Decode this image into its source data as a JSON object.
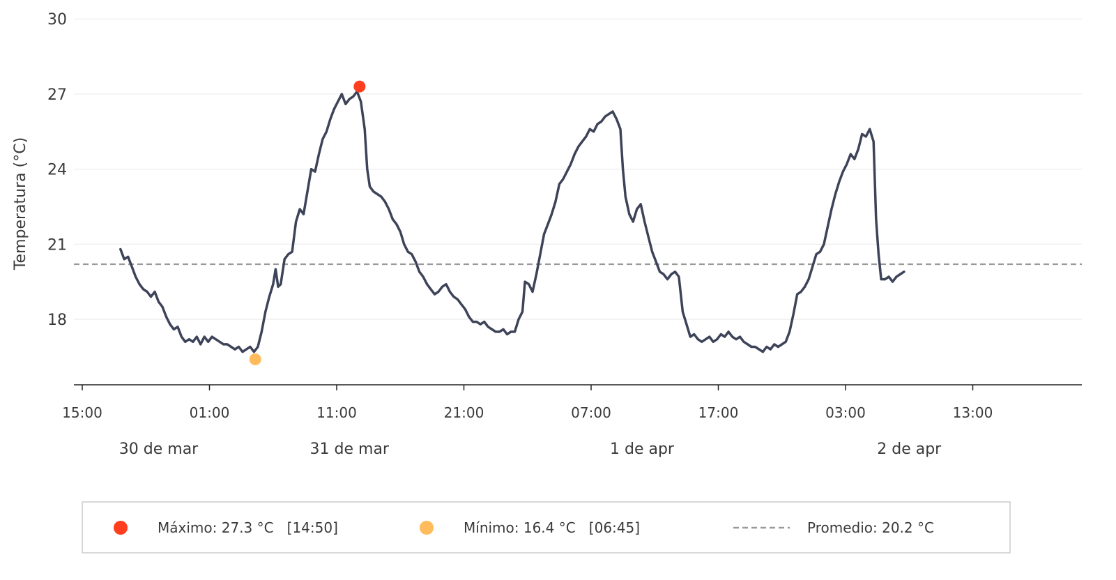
{
  "chart_data": {
    "type": "line",
    "ylabel": "Temperatura (°C)",
    "xlabel": "",
    "ylim": [
      15.2,
      30.3
    ],
    "x_range_hours": [
      15,
      63
    ],
    "yticks": [
      18,
      21,
      24,
      27,
      30
    ],
    "xticks": [
      {
        "hour": 15,
        "label": "15:00"
      },
      {
        "hour": 25,
        "label": "01:00"
      },
      {
        "hour": 35,
        "label": "11:00"
      },
      {
        "hour": 45,
        "label": "21:00"
      },
      {
        "hour": 55,
        "label": "07:00"
      },
      {
        "hour": 65,
        "label": "17:00"
      },
      {
        "hour": 75,
        "label": "03:00"
      },
      {
        "hour": 85,
        "label": "13:00"
      }
    ],
    "date_labels": [
      {
        "hour": 21,
        "label": "30 de mar"
      },
      {
        "hour": 36,
        "label": "31 de mar"
      },
      {
        "hour": 59,
        "label": "1 de apr"
      },
      {
        "hour": 80,
        "label": "2 de apr"
      }
    ],
    "grid": "horizontal",
    "colors": {
      "line": "#3d4358",
      "max": "#ff3d1f",
      "min": "#ffbb5c",
      "mean": "#999999",
      "grid": "#ececec",
      "axis": "#222222"
    },
    "series": [
      {
        "points": [
          [
            18.0,
            20.8
          ],
          [
            18.3,
            20.4
          ],
          [
            18.6,
            20.5
          ],
          [
            18.9,
            20.1
          ],
          [
            19.2,
            19.7
          ],
          [
            19.5,
            19.4
          ],
          [
            19.8,
            19.2
          ],
          [
            20.1,
            19.1
          ],
          [
            20.4,
            18.9
          ],
          [
            20.7,
            19.1
          ],
          [
            21.0,
            18.7
          ],
          [
            21.3,
            18.5
          ],
          [
            21.6,
            18.1
          ],
          [
            21.9,
            17.8
          ],
          [
            22.2,
            17.6
          ],
          [
            22.5,
            17.7
          ],
          [
            22.8,
            17.3
          ],
          [
            23.1,
            17.1
          ],
          [
            23.4,
            17.2
          ],
          [
            23.7,
            17.1
          ],
          [
            24.0,
            17.3
          ],
          [
            24.3,
            17.0
          ],
          [
            24.6,
            17.3
          ],
          [
            24.9,
            17.1
          ],
          [
            25.2,
            17.3
          ],
          [
            25.5,
            17.2
          ],
          [
            25.8,
            17.1
          ],
          [
            26.1,
            17.0
          ],
          [
            26.4,
            17.0
          ],
          [
            26.7,
            16.9
          ],
          [
            27.0,
            16.8
          ],
          [
            27.3,
            16.9
          ],
          [
            27.6,
            16.7
          ],
          [
            27.9,
            16.8
          ],
          [
            28.2,
            16.9
          ],
          [
            28.5,
            16.7
          ],
          [
            28.8,
            16.9
          ],
          [
            29.1,
            17.5
          ],
          [
            29.4,
            18.3
          ],
          [
            29.7,
            18.9
          ],
          [
            30.0,
            19.4
          ],
          [
            30.2,
            20.0
          ],
          [
            30.4,
            19.3
          ],
          [
            30.6,
            19.4
          ],
          [
            30.9,
            20.4
          ],
          [
            31.2,
            20.6
          ],
          [
            31.5,
            20.7
          ],
          [
            31.8,
            21.9
          ],
          [
            32.1,
            22.4
          ],
          [
            32.4,
            22.2
          ],
          [
            32.7,
            23.1
          ],
          [
            33.0,
            24.0
          ],
          [
            33.3,
            23.9
          ],
          [
            33.6,
            24.6
          ],
          [
            33.9,
            25.2
          ],
          [
            34.2,
            25.5
          ],
          [
            34.5,
            26.0
          ],
          [
            34.8,
            26.4
          ],
          [
            35.1,
            26.7
          ],
          [
            35.4,
            27.0
          ],
          [
            35.7,
            26.6
          ],
          [
            36.0,
            26.8
          ],
          [
            36.3,
            26.9
          ],
          [
            36.6,
            27.1
          ],
          [
            36.9,
            26.7
          ],
          [
            37.2,
            25.6
          ],
          [
            37.4,
            24.0
          ],
          [
            37.6,
            23.3
          ],
          [
            37.9,
            23.1
          ],
          [
            38.2,
            23.0
          ],
          [
            38.5,
            22.9
          ],
          [
            38.8,
            22.7
          ],
          [
            39.1,
            22.4
          ],
          [
            39.4,
            22.0
          ],
          [
            39.7,
            21.8
          ],
          [
            40.0,
            21.5
          ],
          [
            40.3,
            21.0
          ],
          [
            40.6,
            20.7
          ],
          [
            40.9,
            20.6
          ],
          [
            41.2,
            20.3
          ],
          [
            41.5,
            19.9
          ],
          [
            41.8,
            19.7
          ],
          [
            42.1,
            19.4
          ],
          [
            42.4,
            19.2
          ],
          [
            42.7,
            19.0
          ],
          [
            43.0,
            19.1
          ],
          [
            43.3,
            19.3
          ],
          [
            43.6,
            19.4
          ],
          [
            43.9,
            19.1
          ],
          [
            44.2,
            18.9
          ],
          [
            44.5,
            18.8
          ],
          [
            44.8,
            18.6
          ],
          [
            45.1,
            18.4
          ],
          [
            45.4,
            18.1
          ],
          [
            45.7,
            17.9
          ],
          [
            46.0,
            17.9
          ],
          [
            46.3,
            17.8
          ],
          [
            46.6,
            17.9
          ],
          [
            46.9,
            17.7
          ],
          [
            47.2,
            17.6
          ],
          [
            47.5,
            17.5
          ],
          [
            47.8,
            17.5
          ],
          [
            48.1,
            17.6
          ],
          [
            48.4,
            17.4
          ],
          [
            48.7,
            17.5
          ],
          [
            49.0,
            17.5
          ],
          [
            49.3,
            18.0
          ],
          [
            49.6,
            18.3
          ],
          [
            49.8,
            19.5
          ],
          [
            50.1,
            19.4
          ],
          [
            50.4,
            19.1
          ],
          [
            50.7,
            19.8
          ],
          [
            51.0,
            20.6
          ],
          [
            51.3,
            21.4
          ],
          [
            51.6,
            21.8
          ],
          [
            51.9,
            22.2
          ],
          [
            52.2,
            22.7
          ],
          [
            52.5,
            23.4
          ],
          [
            52.8,
            23.6
          ],
          [
            53.1,
            23.9
          ],
          [
            53.4,
            24.2
          ],
          [
            53.7,
            24.6
          ],
          [
            54.0,
            24.9
          ],
          [
            54.3,
            25.1
          ],
          [
            54.6,
            25.3
          ],
          [
            54.9,
            25.6
          ],
          [
            55.2,
            25.5
          ],
          [
            55.5,
            25.8
          ],
          [
            55.8,
            25.9
          ],
          [
            56.1,
            26.1
          ],
          [
            56.4,
            26.2
          ],
          [
            56.7,
            26.3
          ],
          [
            57.0,
            26.0
          ],
          [
            57.3,
            25.6
          ],
          [
            57.5,
            24.0
          ],
          [
            57.7,
            22.9
          ],
          [
            58.0,
            22.2
          ],
          [
            58.3,
            21.9
          ],
          [
            58.6,
            22.4
          ],
          [
            58.9,
            22.6
          ],
          [
            59.2,
            21.9
          ],
          [
            59.5,
            21.3
          ],
          [
            59.8,
            20.7
          ],
          [
            60.1,
            20.3
          ],
          [
            60.4,
            19.9
          ],
          [
            60.7,
            19.8
          ],
          [
            61.0,
            19.6
          ],
          [
            61.3,
            19.8
          ],
          [
            61.6,
            19.9
          ],
          [
            61.9,
            19.7
          ],
          [
            62.2,
            18.3
          ],
          [
            62.5,
            17.8
          ],
          [
            62.8,
            17.3
          ],
          [
            63.1,
            17.4
          ],
          [
            63.4,
            17.2
          ],
          [
            63.7,
            17.1
          ],
          [
            64.0,
            17.2
          ],
          [
            64.3,
            17.3
          ],
          [
            64.6,
            17.1
          ],
          [
            64.9,
            17.2
          ],
          [
            65.2,
            17.4
          ],
          [
            65.5,
            17.3
          ],
          [
            65.8,
            17.5
          ],
          [
            66.1,
            17.3
          ],
          [
            66.4,
            17.2
          ],
          [
            66.7,
            17.3
          ],
          [
            67.0,
            17.1
          ],
          [
            67.3,
            17.0
          ],
          [
            67.6,
            16.9
          ],
          [
            67.9,
            16.9
          ],
          [
            68.2,
            16.8
          ],
          [
            68.5,
            16.7
          ],
          [
            68.8,
            16.9
          ],
          [
            69.1,
            16.8
          ],
          [
            69.4,
            17.0
          ],
          [
            69.7,
            16.9
          ],
          [
            70.0,
            17.0
          ],
          [
            70.3,
            17.1
          ],
          [
            70.6,
            17.5
          ],
          [
            70.9,
            18.2
          ],
          [
            71.2,
            19.0
          ],
          [
            71.5,
            19.1
          ],
          [
            71.8,
            19.3
          ],
          [
            72.1,
            19.6
          ],
          [
            72.4,
            20.1
          ],
          [
            72.7,
            20.6
          ],
          [
            73.0,
            20.7
          ],
          [
            73.3,
            21.0
          ],
          [
            73.6,
            21.7
          ],
          [
            73.9,
            22.4
          ],
          [
            74.2,
            23.0
          ],
          [
            74.5,
            23.5
          ],
          [
            74.8,
            23.9
          ],
          [
            75.1,
            24.2
          ],
          [
            75.4,
            24.6
          ],
          [
            75.7,
            24.4
          ],
          [
            76.0,
            24.8
          ],
          [
            76.3,
            25.4
          ],
          [
            76.6,
            25.3
          ],
          [
            76.9,
            25.6
          ],
          [
            77.2,
            25.1
          ],
          [
            77.4,
            22.0
          ],
          [
            77.6,
            20.6
          ],
          [
            77.8,
            19.6
          ],
          [
            78.1,
            19.6
          ],
          [
            78.4,
            19.7
          ],
          [
            78.7,
            19.5
          ],
          [
            79.0,
            19.7
          ],
          [
            79.3,
            19.8
          ],
          [
            79.6,
            19.9
          ]
        ]
      }
    ],
    "max_point": {
      "hour": 36.8,
      "value": 27.3
    },
    "min_point": {
      "hour": 28.6,
      "value": 16.4
    },
    "mean_value": 20.2,
    "legend": {
      "placement": "bottom",
      "max_label": "Máximo: 27.3 °C   [14:50]",
      "min_label": "Mínimo: 16.4 °C   [06:45]",
      "mean_label": "Promedio: 20.2 °C"
    }
  }
}
